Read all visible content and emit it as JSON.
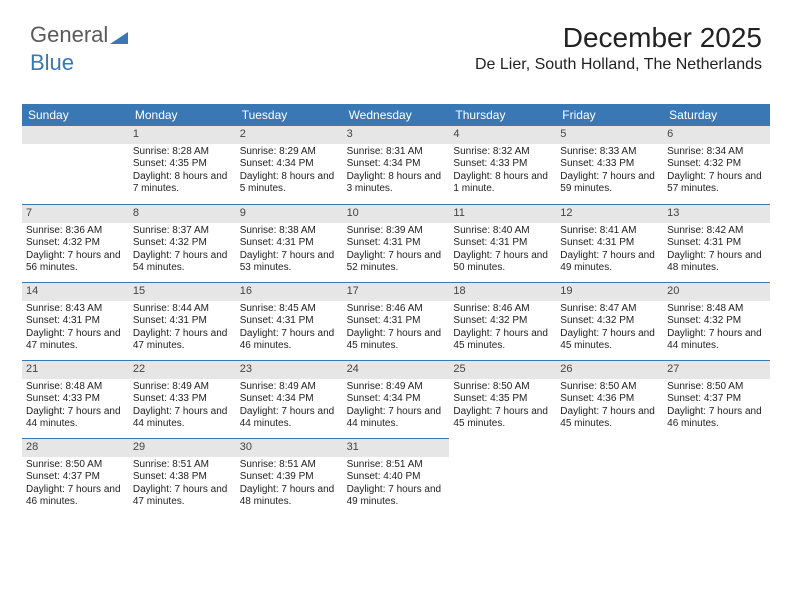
{
  "logo": {
    "text1": "General",
    "text2": "Blue"
  },
  "header": {
    "title": "December 2025",
    "location": "De Lier, South Holland, The Netherlands"
  },
  "dayNames": [
    "Sunday",
    "Monday",
    "Tuesday",
    "Wednesday",
    "Thursday",
    "Friday",
    "Saturday"
  ],
  "colors": {
    "headerBar": "#3a78b5",
    "dayNumBg": "#e6e6e6",
    "text": "#222222",
    "background": "#ffffff"
  },
  "weeks": [
    [
      {
        "n": "",
        "sr": "",
        "ss": "",
        "dl": ""
      },
      {
        "n": "1",
        "sr": "Sunrise: 8:28 AM",
        "ss": "Sunset: 4:35 PM",
        "dl": "Daylight: 8 hours and 7 minutes."
      },
      {
        "n": "2",
        "sr": "Sunrise: 8:29 AM",
        "ss": "Sunset: 4:34 PM",
        "dl": "Daylight: 8 hours and 5 minutes."
      },
      {
        "n": "3",
        "sr": "Sunrise: 8:31 AM",
        "ss": "Sunset: 4:34 PM",
        "dl": "Daylight: 8 hours and 3 minutes."
      },
      {
        "n": "4",
        "sr": "Sunrise: 8:32 AM",
        "ss": "Sunset: 4:33 PM",
        "dl": "Daylight: 8 hours and 1 minute."
      },
      {
        "n": "5",
        "sr": "Sunrise: 8:33 AM",
        "ss": "Sunset: 4:33 PM",
        "dl": "Daylight: 7 hours and 59 minutes."
      },
      {
        "n": "6",
        "sr": "Sunrise: 8:34 AM",
        "ss": "Sunset: 4:32 PM",
        "dl": "Daylight: 7 hours and 57 minutes."
      }
    ],
    [
      {
        "n": "7",
        "sr": "Sunrise: 8:36 AM",
        "ss": "Sunset: 4:32 PM",
        "dl": "Daylight: 7 hours and 56 minutes."
      },
      {
        "n": "8",
        "sr": "Sunrise: 8:37 AM",
        "ss": "Sunset: 4:32 PM",
        "dl": "Daylight: 7 hours and 54 minutes."
      },
      {
        "n": "9",
        "sr": "Sunrise: 8:38 AM",
        "ss": "Sunset: 4:31 PM",
        "dl": "Daylight: 7 hours and 53 minutes."
      },
      {
        "n": "10",
        "sr": "Sunrise: 8:39 AM",
        "ss": "Sunset: 4:31 PM",
        "dl": "Daylight: 7 hours and 52 minutes."
      },
      {
        "n": "11",
        "sr": "Sunrise: 8:40 AM",
        "ss": "Sunset: 4:31 PM",
        "dl": "Daylight: 7 hours and 50 minutes."
      },
      {
        "n": "12",
        "sr": "Sunrise: 8:41 AM",
        "ss": "Sunset: 4:31 PM",
        "dl": "Daylight: 7 hours and 49 minutes."
      },
      {
        "n": "13",
        "sr": "Sunrise: 8:42 AM",
        "ss": "Sunset: 4:31 PM",
        "dl": "Daylight: 7 hours and 48 minutes."
      }
    ],
    [
      {
        "n": "14",
        "sr": "Sunrise: 8:43 AM",
        "ss": "Sunset: 4:31 PM",
        "dl": "Daylight: 7 hours and 47 minutes."
      },
      {
        "n": "15",
        "sr": "Sunrise: 8:44 AM",
        "ss": "Sunset: 4:31 PM",
        "dl": "Daylight: 7 hours and 47 minutes."
      },
      {
        "n": "16",
        "sr": "Sunrise: 8:45 AM",
        "ss": "Sunset: 4:31 PM",
        "dl": "Daylight: 7 hours and 46 minutes."
      },
      {
        "n": "17",
        "sr": "Sunrise: 8:46 AM",
        "ss": "Sunset: 4:31 PM",
        "dl": "Daylight: 7 hours and 45 minutes."
      },
      {
        "n": "18",
        "sr": "Sunrise: 8:46 AM",
        "ss": "Sunset: 4:32 PM",
        "dl": "Daylight: 7 hours and 45 minutes."
      },
      {
        "n": "19",
        "sr": "Sunrise: 8:47 AM",
        "ss": "Sunset: 4:32 PM",
        "dl": "Daylight: 7 hours and 45 minutes."
      },
      {
        "n": "20",
        "sr": "Sunrise: 8:48 AM",
        "ss": "Sunset: 4:32 PM",
        "dl": "Daylight: 7 hours and 44 minutes."
      }
    ],
    [
      {
        "n": "21",
        "sr": "Sunrise: 8:48 AM",
        "ss": "Sunset: 4:33 PM",
        "dl": "Daylight: 7 hours and 44 minutes."
      },
      {
        "n": "22",
        "sr": "Sunrise: 8:49 AM",
        "ss": "Sunset: 4:33 PM",
        "dl": "Daylight: 7 hours and 44 minutes."
      },
      {
        "n": "23",
        "sr": "Sunrise: 8:49 AM",
        "ss": "Sunset: 4:34 PM",
        "dl": "Daylight: 7 hours and 44 minutes."
      },
      {
        "n": "24",
        "sr": "Sunrise: 8:49 AM",
        "ss": "Sunset: 4:34 PM",
        "dl": "Daylight: 7 hours and 44 minutes."
      },
      {
        "n": "25",
        "sr": "Sunrise: 8:50 AM",
        "ss": "Sunset: 4:35 PM",
        "dl": "Daylight: 7 hours and 45 minutes."
      },
      {
        "n": "26",
        "sr": "Sunrise: 8:50 AM",
        "ss": "Sunset: 4:36 PM",
        "dl": "Daylight: 7 hours and 45 minutes."
      },
      {
        "n": "27",
        "sr": "Sunrise: 8:50 AM",
        "ss": "Sunset: 4:37 PM",
        "dl": "Daylight: 7 hours and 46 minutes."
      }
    ],
    [
      {
        "n": "28",
        "sr": "Sunrise: 8:50 AM",
        "ss": "Sunset: 4:37 PM",
        "dl": "Daylight: 7 hours and 46 minutes."
      },
      {
        "n": "29",
        "sr": "Sunrise: 8:51 AM",
        "ss": "Sunset: 4:38 PM",
        "dl": "Daylight: 7 hours and 47 minutes."
      },
      {
        "n": "30",
        "sr": "Sunrise: 8:51 AM",
        "ss": "Sunset: 4:39 PM",
        "dl": "Daylight: 7 hours and 48 minutes."
      },
      {
        "n": "31",
        "sr": "Sunrise: 8:51 AM",
        "ss": "Sunset: 4:40 PM",
        "dl": "Daylight: 7 hours and 49 minutes."
      },
      {
        "n": "",
        "sr": "",
        "ss": "",
        "dl": ""
      },
      {
        "n": "",
        "sr": "",
        "ss": "",
        "dl": ""
      },
      {
        "n": "",
        "sr": "",
        "ss": "",
        "dl": ""
      }
    ]
  ]
}
